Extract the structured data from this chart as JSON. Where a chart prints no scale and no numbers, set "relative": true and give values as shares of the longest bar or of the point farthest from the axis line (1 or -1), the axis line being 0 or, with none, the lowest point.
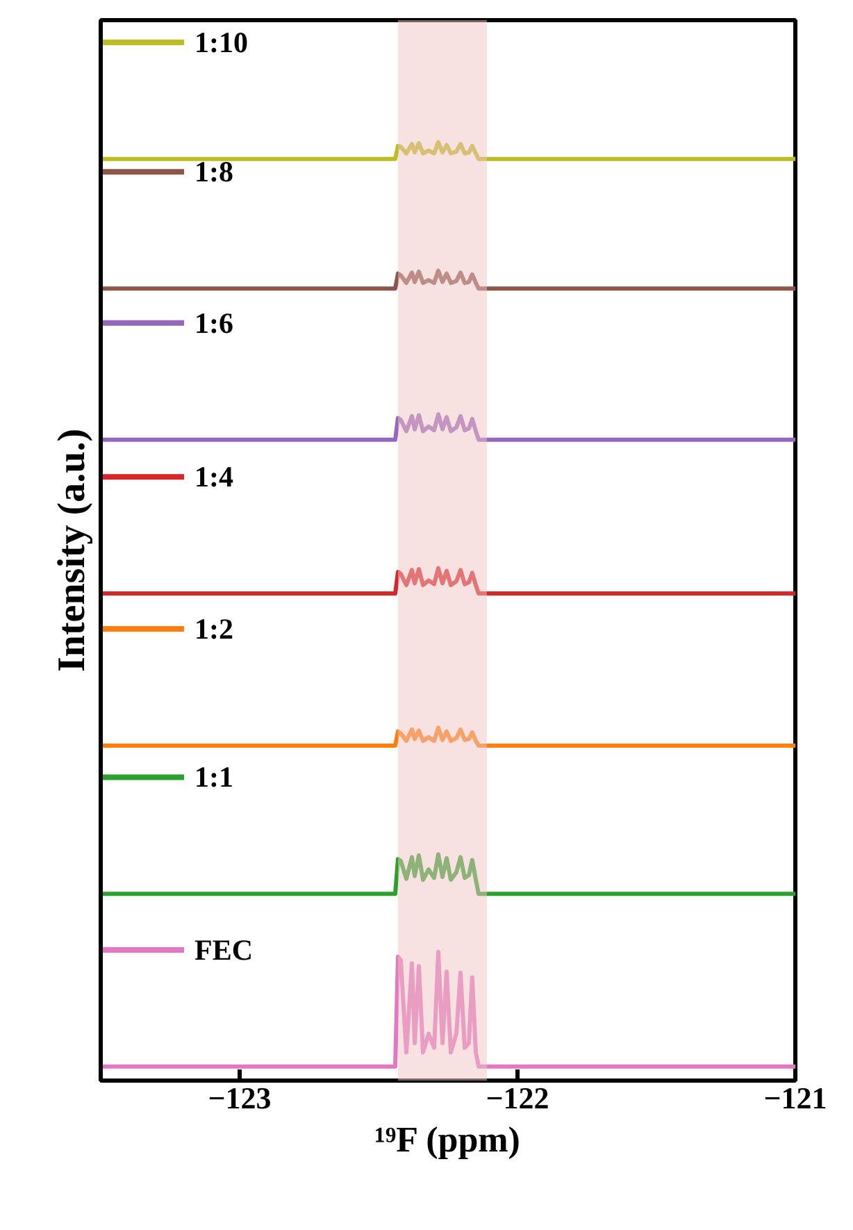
{
  "chart_data": {
    "type": "line",
    "relative": true,
    "xlabel": "¹⁹F (ppm)",
    "ylabel": "Intensity (a.u.)",
    "xlim": [
      -123.5,
      -121
    ],
    "xticks": [
      -123,
      -122,
      -121
    ],
    "grid": false,
    "legend": "left",
    "marker": "none",
    "line_style": "solid",
    "bands": [
      {
        "axis": "x",
        "from": -122.43,
        "to": -122.11,
        "color": "#f2c4c4"
      }
    ],
    "x": [
      -123.5,
      -122.44,
      -122.43,
      -122.42,
      -122.4,
      -122.38,
      -122.37,
      -122.355,
      -122.34,
      -122.32,
      -122.3,
      -122.285,
      -122.27,
      -122.255,
      -122.24,
      -122.22,
      -122.205,
      -122.19,
      -122.175,
      -122.163,
      -122.15,
      -122.14,
      -121.0
    ],
    "series": [
      {
        "name": "1:10",
        "color": "#bcbd22",
        "values": [
          0.982,
          0.982,
          0.996,
          0.995,
          0.988,
          0.998,
          0.989,
          0.999,
          0.988,
          0.991,
          0.988,
          1.0,
          0.989,
          0.997,
          0.988,
          0.99,
          0.998,
          0.988,
          0.989,
          0.996,
          0.988,
          0.982,
          0.982
        ]
      },
      {
        "name": "1:8",
        "color": "#8c564b",
        "values": [
          0.844,
          0.844,
          0.86,
          0.858,
          0.85,
          0.861,
          0.851,
          0.862,
          0.85,
          0.853,
          0.85,
          0.863,
          0.851,
          0.86,
          0.85,
          0.852,
          0.861,
          0.85,
          0.851,
          0.859,
          0.85,
          0.844,
          0.844
        ]
      },
      {
        "name": "1:6",
        "color": "#9467bd",
        "values": [
          0.683,
          0.683,
          0.706,
          0.704,
          0.692,
          0.708,
          0.694,
          0.709,
          0.692,
          0.697,
          0.693,
          0.71,
          0.694,
          0.707,
          0.692,
          0.696,
          0.708,
          0.693,
          0.695,
          0.705,
          0.692,
          0.683,
          0.683
        ]
      },
      {
        "name": "1:4",
        "color": "#d62728",
        "values": [
          0.519,
          0.519,
          0.542,
          0.54,
          0.528,
          0.544,
          0.53,
          0.545,
          0.528,
          0.533,
          0.529,
          0.546,
          0.53,
          0.543,
          0.528,
          0.532,
          0.544,
          0.529,
          0.531,
          0.541,
          0.528,
          0.519,
          0.519
        ]
      },
      {
        "name": "1:2",
        "color": "#ff7f0e",
        "values": [
          0.357,
          0.357,
          0.372,
          0.37,
          0.362,
          0.374,
          0.364,
          0.373,
          0.362,
          0.366,
          0.362,
          0.376,
          0.363,
          0.372,
          0.362,
          0.365,
          0.374,
          0.363,
          0.364,
          0.371,
          0.362,
          0.357,
          0.357
        ]
      },
      {
        "name": "1:1",
        "color": "#2ca02c",
        "values": [
          0.199,
          0.199,
          0.236,
          0.234,
          0.215,
          0.238,
          0.218,
          0.24,
          0.214,
          0.225,
          0.216,
          0.241,
          0.217,
          0.237,
          0.214,
          0.222,
          0.238,
          0.216,
          0.219,
          0.235,
          0.214,
          0.199,
          0.199
        ]
      },
      {
        "name": "FEC",
        "color": "#e377c2",
        "values": [
          0.015,
          0.015,
          0.132,
          0.128,
          0.03,
          0.125,
          0.04,
          0.122,
          0.03,
          0.05,
          0.035,
          0.137,
          0.04,
          0.116,
          0.03,
          0.05,
          0.115,
          0.035,
          0.04,
          0.11,
          0.03,
          0.015,
          0.015
        ]
      }
    ]
  }
}
